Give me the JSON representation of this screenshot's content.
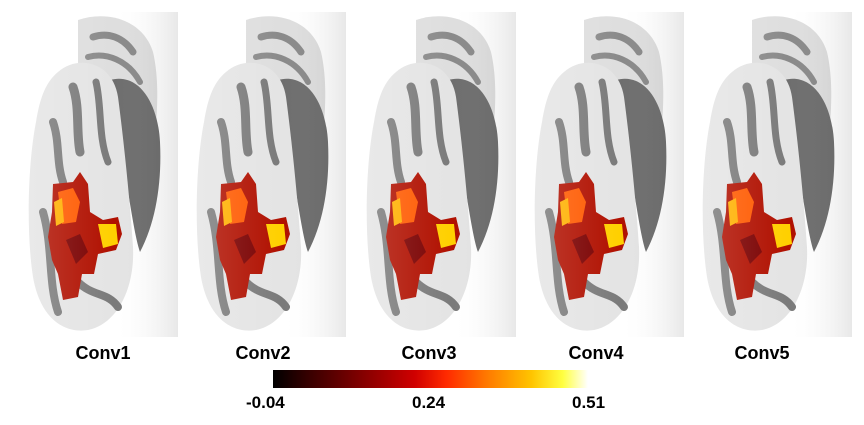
{
  "panels": [
    {
      "label": "Conv1"
    },
    {
      "label": "Conv2"
    },
    {
      "label": "Conv3"
    },
    {
      "label": "Conv4"
    },
    {
      "label": "Conv5"
    }
  ],
  "colorbar": {
    "min_label": "-0.04",
    "mid_label": "0.24",
    "max_label": "0.51",
    "colormap": [
      "#000000",
      "#8b0000",
      "#ff2a00",
      "#ffc400",
      "#ffffff"
    ]
  },
  "colors": {
    "cortex_light": "#e6e6e6",
    "cortex_dark": "#7a7a7a",
    "medial_wall": "#6e6e6e"
  }
}
